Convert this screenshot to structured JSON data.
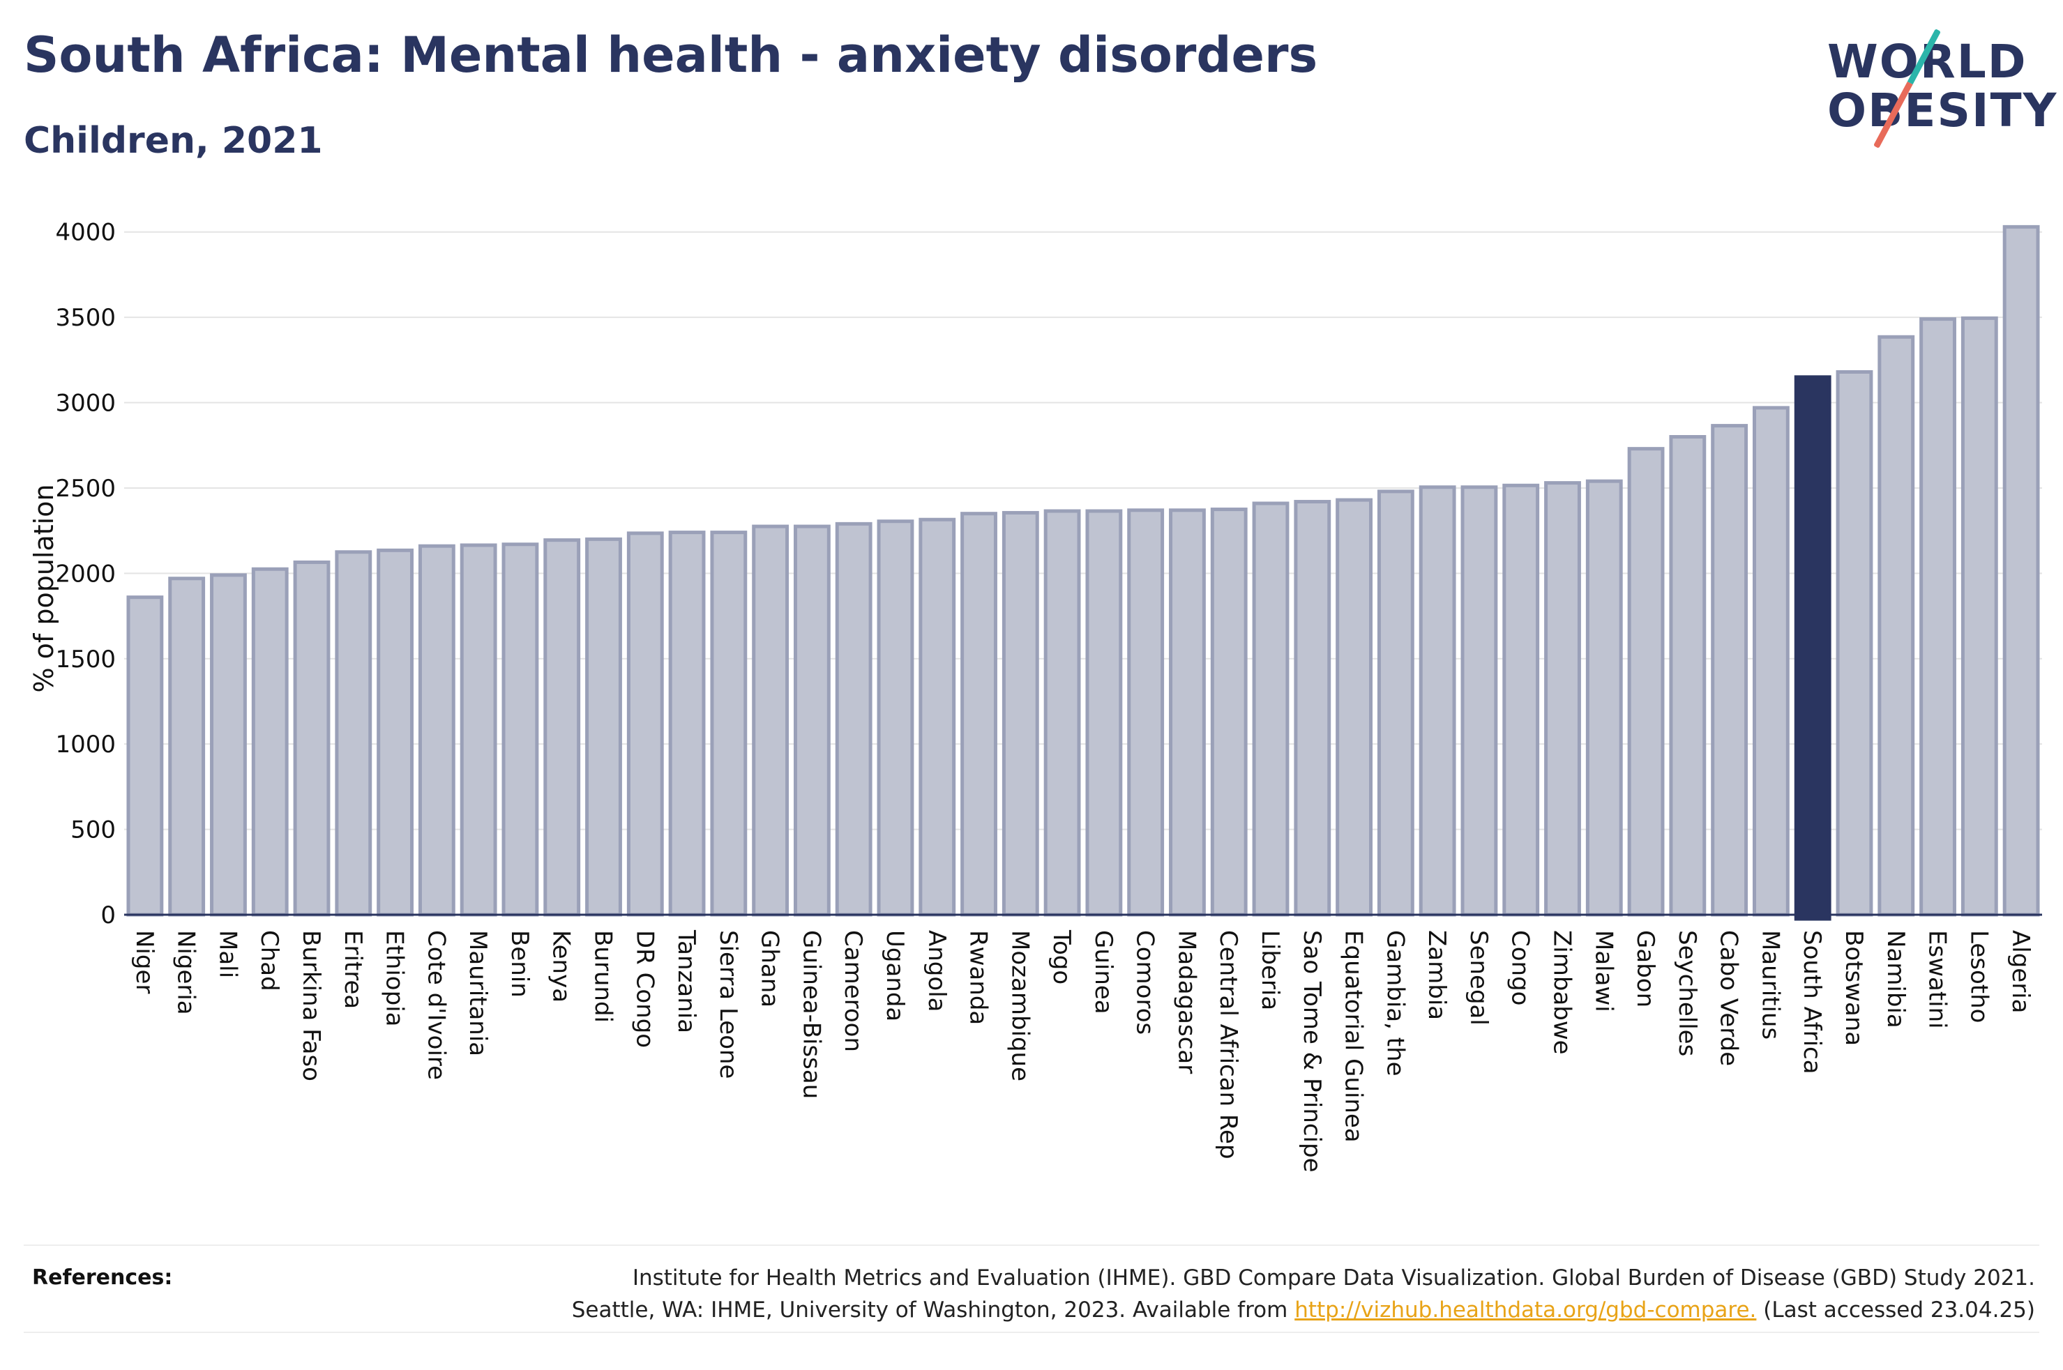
{
  "header": {
    "title": "South Africa: Mental health - anxiety disorders",
    "subtitle": "Children, 2021"
  },
  "logo": {
    "line1": "WORLD",
    "line2": "OBESITY",
    "colors": {
      "text": "#2a3560",
      "slash_top": "#2bb5aa",
      "slash_bottom": "#e86b5a"
    }
  },
  "chart_data": {
    "type": "bar",
    "ylabel": "% of population",
    "ylim": [
      0,
      4150
    ],
    "yticks": [
      0,
      500,
      1000,
      1500,
      2000,
      2500,
      3000,
      3500,
      4000
    ],
    "grid": true,
    "highlight": "South Africa",
    "colors": {
      "bar": "#bfc3d1",
      "bar_border": "#9aa0b8",
      "highlight": "#2a3560"
    },
    "categories": [
      "Niger",
      "Nigeria",
      "Mali",
      "Chad",
      "Burkina Faso",
      "Eritrea",
      "Ethiopia",
      "Cote d'Ivoire",
      "Mauritania",
      "Benin",
      "Kenya",
      "Burundi",
      "DR Congo",
      "Tanzania",
      "Sierra Leone",
      "Ghana",
      "Guinea-Bissau",
      "Cameroon",
      "Uganda",
      "Angola",
      "Rwanda",
      "Mozambique",
      "Togo",
      "Guinea",
      "Comoros",
      "Madagascar",
      "Central African Rep",
      "Liberia",
      "Sao Tome & Principe",
      "Equatorial Guinea",
      "Gambia, the",
      "Zambia",
      "Senegal",
      "Congo",
      "Zimbabwe",
      "Malawi",
      "Gabon",
      "Seychelles",
      "Cabo Verde",
      "Mauritius",
      "South Africa",
      "Botswana",
      "Namibia",
      "Eswatini",
      "Lesotho",
      "Algeria"
    ],
    "values": [
      1860,
      1970,
      1990,
      2025,
      2065,
      2125,
      2135,
      2160,
      2165,
      2170,
      2195,
      2200,
      2235,
      2240,
      2240,
      2275,
      2275,
      2290,
      2305,
      2315,
      2350,
      2355,
      2365,
      2365,
      2370,
      2370,
      2375,
      2410,
      2420,
      2430,
      2480,
      2505,
      2505,
      2515,
      2530,
      2540,
      2730,
      2800,
      2865,
      2970,
      3150,
      3180,
      3385,
      3490,
      3495,
      4030
    ]
  },
  "footer": {
    "label": "References:",
    "line1": "Institute for Health Metrics and Evaluation (IHME). GBD Compare Data Visualization. Global Burden of Disease (GBD) Study 2021.",
    "line2_prefix": "Seattle, WA: IHME, University of Washington, 2023. Available from ",
    "link": "http://vizhub.healthdata.org/gbd-compare.",
    "line2_suffix": " (Last accessed 23.04.25)"
  }
}
